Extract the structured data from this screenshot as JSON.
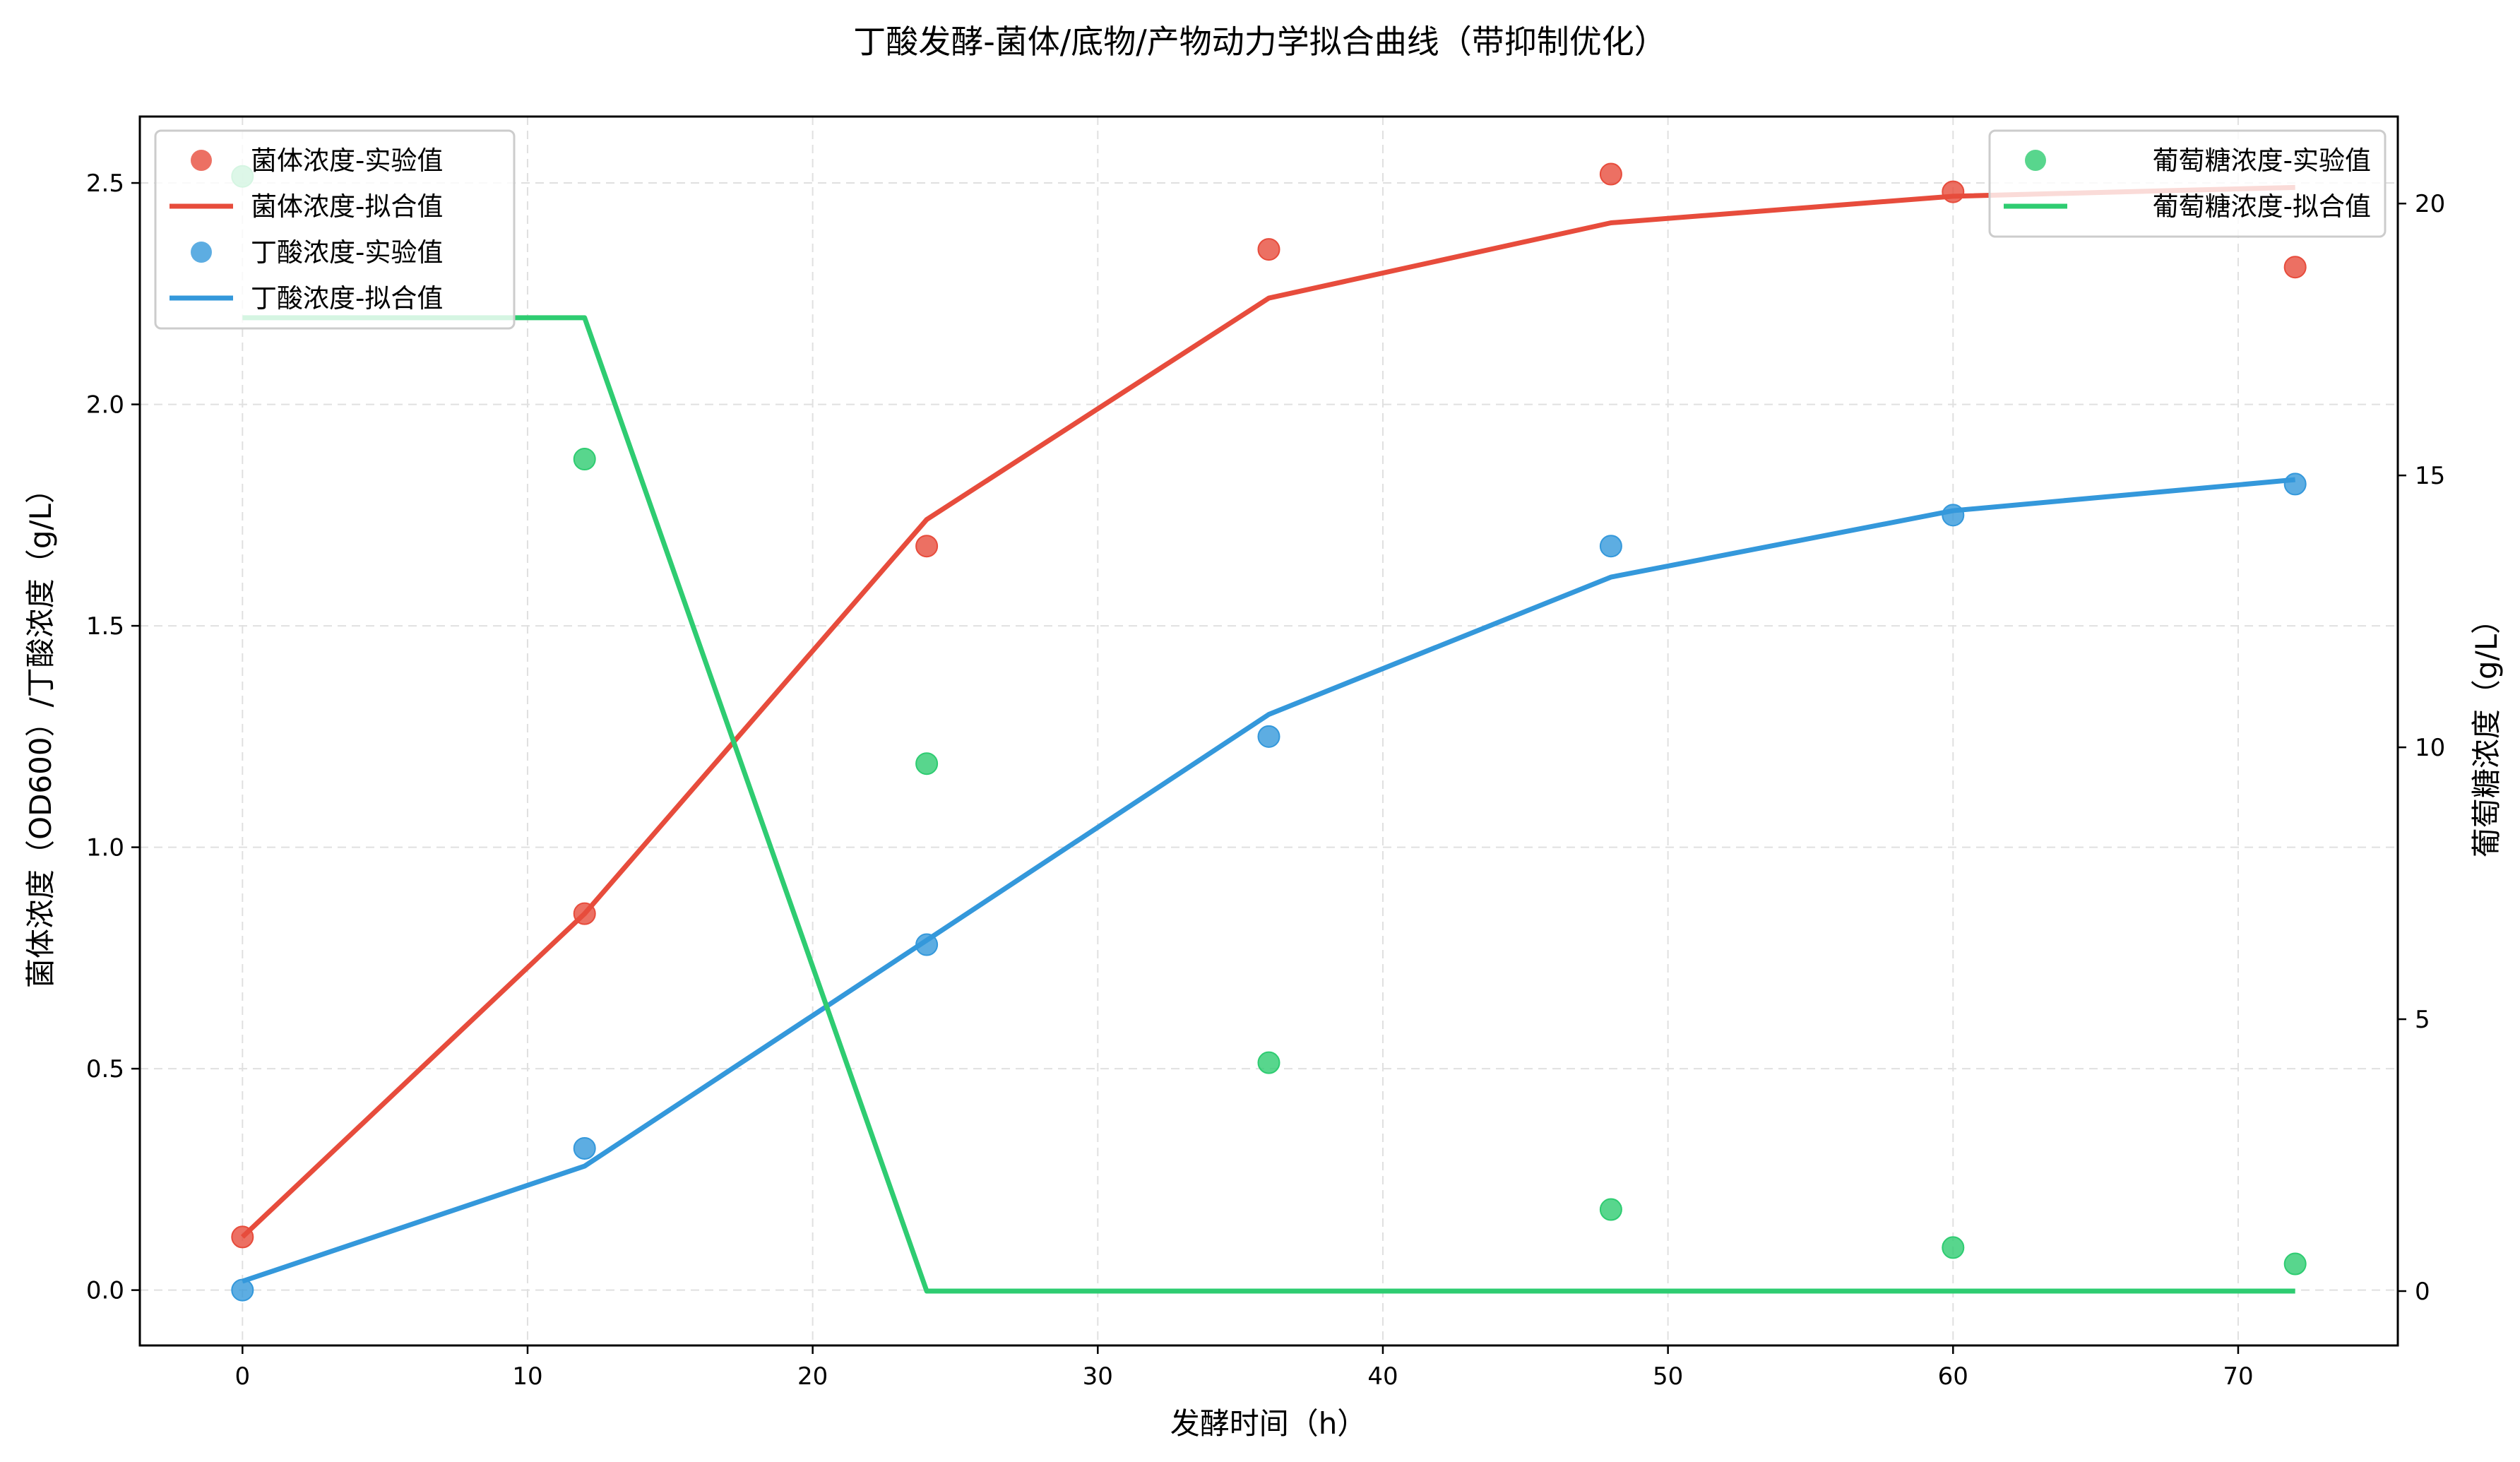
{
  "chart_data": {
    "type": "line",
    "title": "丁酸发酵-菌体/底物/产物动力学拟合曲线（带抑制优化）",
    "xlabel": "发酵时间（h）",
    "ylabel_left": "菌体浓度（OD600）/丁酸浓度（g/L）",
    "ylabel_right": "葡萄糖浓度（g/L）",
    "xlim": [
      -3.6,
      75.6
    ],
    "ylim_left": [
      -0.125,
      2.65
    ],
    "ylim_right": [
      -1.0,
      21.6
    ],
    "xticks": [
      0,
      10,
      20,
      30,
      40,
      50,
      60,
      70
    ],
    "yticks_left": [
      "0.0",
      "0.5",
      "1.0",
      "1.5",
      "2.0",
      "2.5"
    ],
    "yticks_right": [
      "0",
      "5",
      "10",
      "15",
      "20"
    ],
    "grid": true,
    "x": [
      0,
      12,
      24,
      36,
      48,
      60,
      72
    ],
    "series": [
      {
        "name": "菌体浓度-实验值",
        "kind": "scatter",
        "axis": "left",
        "color": "#e74c3c",
        "values": [
          0.12,
          0.85,
          1.68,
          2.35,
          2.52,
          2.48,
          2.31
        ]
      },
      {
        "name": "菌体浓度-拟合值",
        "kind": "line",
        "axis": "left",
        "color": "#e74c3c",
        "values": [
          0.12,
          0.85,
          1.74,
          2.24,
          2.41,
          2.47,
          2.49
        ]
      },
      {
        "name": "丁酸浓度-实验值",
        "kind": "scatter",
        "axis": "left",
        "color": "#3498db",
        "values": [
          0.0,
          0.32,
          0.78,
          1.25,
          1.68,
          1.75,
          1.82
        ]
      },
      {
        "name": "丁酸浓度-拟合值",
        "kind": "line",
        "axis": "left",
        "color": "#3498db",
        "values": [
          0.02,
          0.28,
          0.79,
          1.3,
          1.61,
          1.76,
          1.83
        ]
      },
      {
        "name": "葡萄糖浓度-实验值",
        "kind": "scatter",
        "axis": "right",
        "color": "#2ecc71",
        "values": [
          20.5,
          15.3,
          9.7,
          4.2,
          1.5,
          0.8,
          0.5
        ]
      },
      {
        "name": "葡萄糖浓度-拟合值",
        "kind": "line",
        "axis": "right",
        "color": "#2ecc71",
        "values": [
          17.9,
          17.9,
          0.0,
          0.0,
          0.0,
          0.0,
          0.0
        ]
      }
    ],
    "legend_left": [
      "菌体浓度-实验值",
      "菌体浓度-拟合值",
      "丁酸浓度-实验值",
      "丁酸浓度-拟合值"
    ],
    "legend_right": [
      "葡萄糖浓度-实验值",
      "葡萄糖浓度-拟合值"
    ],
    "legend_position": {
      "left": "upper left",
      "right": "upper right"
    }
  }
}
